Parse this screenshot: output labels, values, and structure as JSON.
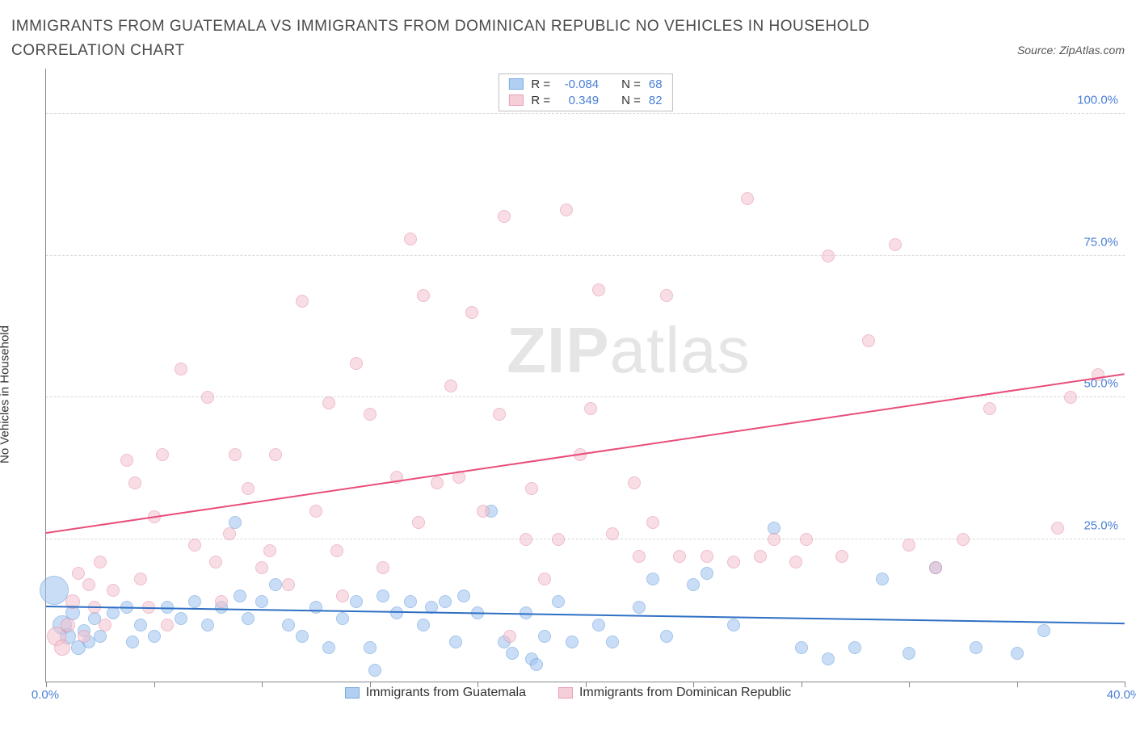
{
  "title": "IMMIGRANTS FROM GUATEMALA VS IMMIGRANTS FROM DOMINICAN REPUBLIC NO VEHICLES IN HOUSEHOLD CORRELATION CHART",
  "source_label": "Source: ZipAtlas.com",
  "y_axis_label": "No Vehicles in Household",
  "watermark": {
    "zip": "ZIP",
    "atlas": "atlas"
  },
  "chart": {
    "type": "scatter",
    "background_color": "#ffffff",
    "grid_color": "#d8d8d8",
    "axis_color": "#888888",
    "tick_label_color": "#4a7fd6",
    "xlim": [
      0,
      40
    ],
    "ylim": [
      0,
      108
    ],
    "x_ticks": [
      0,
      4,
      8,
      12,
      16,
      20,
      24,
      28,
      32,
      36,
      40
    ],
    "x_tick_labels": {
      "0": "0.0%",
      "40": "40.0%"
    },
    "y_ticks": [
      25,
      50,
      75,
      100
    ],
    "y_tick_labels": {
      "25": "25.0%",
      "50": "50.0%",
      "75": "75.0%",
      "100": "100.0%"
    },
    "series": [
      {
        "id": "guatemala",
        "label": "Immigrants from Guatemala",
        "fill_color": "#9ec4f0",
        "stroke_color": "#5a95d8",
        "fill_opacity": 0.55,
        "trend_color": "#2f6fc4",
        "r_label": "R =",
        "r_value": "-0.084",
        "n_label": "N =",
        "n_value": "68",
        "trend": {
          "x1": 0,
          "y1": 13,
          "x2": 40,
          "y2": 10
        },
        "points": [
          {
            "x": 0.3,
            "y": 16,
            "r": 18
          },
          {
            "x": 0.6,
            "y": 10,
            "r": 12
          },
          {
            "x": 0.8,
            "y": 8,
            "r": 10
          },
          {
            "x": 1.0,
            "y": 12,
            "r": 9
          },
          {
            "x": 1.2,
            "y": 6,
            "r": 9
          },
          {
            "x": 1.4,
            "y": 9,
            "r": 8
          },
          {
            "x": 1.6,
            "y": 7,
            "r": 8
          },
          {
            "x": 1.8,
            "y": 11,
            "r": 8
          },
          {
            "x": 2.0,
            "y": 8,
            "r": 8
          },
          {
            "x": 2.5,
            "y": 12,
            "r": 8
          },
          {
            "x": 3.0,
            "y": 13,
            "r": 8
          },
          {
            "x": 3.2,
            "y": 7,
            "r": 8
          },
          {
            "x": 3.5,
            "y": 10,
            "r": 8
          },
          {
            "x": 4.0,
            "y": 8,
            "r": 8
          },
          {
            "x": 4.5,
            "y": 13,
            "r": 8
          },
          {
            "x": 5.0,
            "y": 11,
            "r": 8
          },
          {
            "x": 5.5,
            "y": 14,
            "r": 8
          },
          {
            "x": 6.0,
            "y": 10,
            "r": 8
          },
          {
            "x": 6.5,
            "y": 13,
            "r": 8
          },
          {
            "x": 7.0,
            "y": 28,
            "r": 8
          },
          {
            "x": 7.2,
            "y": 15,
            "r": 8
          },
          {
            "x": 7.5,
            "y": 11,
            "r": 8
          },
          {
            "x": 8.0,
            "y": 14,
            "r": 8
          },
          {
            "x": 8.5,
            "y": 17,
            "r": 8
          },
          {
            "x": 9.0,
            "y": 10,
            "r": 8
          },
          {
            "x": 9.5,
            "y": 8,
            "r": 8
          },
          {
            "x": 10.0,
            "y": 13,
            "r": 8
          },
          {
            "x": 10.5,
            "y": 6,
            "r": 8
          },
          {
            "x": 11.0,
            "y": 11,
            "r": 8
          },
          {
            "x": 11.5,
            "y": 14,
            "r": 8
          },
          {
            "x": 12.0,
            "y": 6,
            "r": 8
          },
          {
            "x": 12.2,
            "y": 2,
            "r": 8
          },
          {
            "x": 12.5,
            "y": 15,
            "r": 8
          },
          {
            "x": 13.0,
            "y": 12,
            "r": 8
          },
          {
            "x": 13.5,
            "y": 14,
            "r": 8
          },
          {
            "x": 14.0,
            "y": 10,
            "r": 8
          },
          {
            "x": 14.3,
            "y": 13,
            "r": 8
          },
          {
            "x": 14.8,
            "y": 14,
            "r": 8
          },
          {
            "x": 15.2,
            "y": 7,
            "r": 8
          },
          {
            "x": 15.5,
            "y": 15,
            "r": 8
          },
          {
            "x": 16.0,
            "y": 12,
            "r": 8
          },
          {
            "x": 16.5,
            "y": 30,
            "r": 8
          },
          {
            "x": 17.0,
            "y": 7,
            "r": 8
          },
          {
            "x": 17.3,
            "y": 5,
            "r": 8
          },
          {
            "x": 17.8,
            "y": 12,
            "r": 8
          },
          {
            "x": 18.0,
            "y": 4,
            "r": 8
          },
          {
            "x": 18.2,
            "y": 3,
            "r": 8
          },
          {
            "x": 18.5,
            "y": 8,
            "r": 8
          },
          {
            "x": 19.0,
            "y": 14,
            "r": 8
          },
          {
            "x": 19.5,
            "y": 7,
            "r": 8
          },
          {
            "x": 20.5,
            "y": 10,
            "r": 8
          },
          {
            "x": 21.0,
            "y": 7,
            "r": 8
          },
          {
            "x": 22.0,
            "y": 13,
            "r": 8
          },
          {
            "x": 22.5,
            "y": 18,
            "r": 8
          },
          {
            "x": 23.0,
            "y": 8,
            "r": 8
          },
          {
            "x": 24.0,
            "y": 17,
            "r": 8
          },
          {
            "x": 24.5,
            "y": 19,
            "r": 8
          },
          {
            "x": 25.5,
            "y": 10,
            "r": 8
          },
          {
            "x": 27.0,
            "y": 27,
            "r": 8
          },
          {
            "x": 28.0,
            "y": 6,
            "r": 8
          },
          {
            "x": 29.0,
            "y": 4,
            "r": 8
          },
          {
            "x": 30.0,
            "y": 6,
            "r": 8
          },
          {
            "x": 31.0,
            "y": 18,
            "r": 8
          },
          {
            "x": 32.0,
            "y": 5,
            "r": 8
          },
          {
            "x": 33.0,
            "y": 20,
            "r": 8
          },
          {
            "x": 34.5,
            "y": 6,
            "r": 8
          },
          {
            "x": 36.0,
            "y": 5,
            "r": 8
          },
          {
            "x": 37.0,
            "y": 9,
            "r": 8
          }
        ]
      },
      {
        "id": "dominican",
        "label": "Immigrants from Dominican Republic",
        "fill_color": "#f4c2cf",
        "stroke_color": "#e388a3",
        "fill_opacity": 0.55,
        "trend_color": "#e94d7a",
        "r_label": "R =",
        "r_value": "0.349",
        "n_label": "N =",
        "n_value": "82",
        "trend": {
          "x1": 0,
          "y1": 26,
          "x2": 40,
          "y2": 54
        },
        "points": [
          {
            "x": 0.4,
            "y": 8,
            "r": 12
          },
          {
            "x": 0.6,
            "y": 6,
            "r": 10
          },
          {
            "x": 0.8,
            "y": 10,
            "r": 9
          },
          {
            "x": 1.0,
            "y": 14,
            "r": 9
          },
          {
            "x": 1.2,
            "y": 19,
            "r": 8
          },
          {
            "x": 1.4,
            "y": 8,
            "r": 8
          },
          {
            "x": 1.6,
            "y": 17,
            "r": 8
          },
          {
            "x": 1.8,
            "y": 13,
            "r": 8
          },
          {
            "x": 2.0,
            "y": 21,
            "r": 8
          },
          {
            "x": 2.2,
            "y": 10,
            "r": 8
          },
          {
            "x": 2.5,
            "y": 16,
            "r": 8
          },
          {
            "x": 3.0,
            "y": 39,
            "r": 8
          },
          {
            "x": 3.3,
            "y": 35,
            "r": 8
          },
          {
            "x": 3.5,
            "y": 18,
            "r": 8
          },
          {
            "x": 3.8,
            "y": 13,
            "r": 8
          },
          {
            "x": 4.0,
            "y": 29,
            "r": 8
          },
          {
            "x": 4.3,
            "y": 40,
            "r": 8
          },
          {
            "x": 4.5,
            "y": 10,
            "r": 8
          },
          {
            "x": 5.0,
            "y": 55,
            "r": 8
          },
          {
            "x": 5.5,
            "y": 24,
            "r": 8
          },
          {
            "x": 6.0,
            "y": 50,
            "r": 8
          },
          {
            "x": 6.3,
            "y": 21,
            "r": 8
          },
          {
            "x": 6.5,
            "y": 14,
            "r": 8
          },
          {
            "x": 6.8,
            "y": 26,
            "r": 8
          },
          {
            "x": 7.0,
            "y": 40,
            "r": 8
          },
          {
            "x": 7.5,
            "y": 34,
            "r": 8
          },
          {
            "x": 8.0,
            "y": 20,
            "r": 8
          },
          {
            "x": 8.3,
            "y": 23,
            "r": 8
          },
          {
            "x": 8.5,
            "y": 40,
            "r": 8
          },
          {
            "x": 9.0,
            "y": 17,
            "r": 8
          },
          {
            "x": 9.5,
            "y": 67,
            "r": 8
          },
          {
            "x": 10.0,
            "y": 30,
            "r": 8
          },
          {
            "x": 10.5,
            "y": 49,
            "r": 8
          },
          {
            "x": 10.8,
            "y": 23,
            "r": 8
          },
          {
            "x": 11.0,
            "y": 15,
            "r": 8
          },
          {
            "x": 11.5,
            "y": 56,
            "r": 8
          },
          {
            "x": 12.0,
            "y": 47,
            "r": 8
          },
          {
            "x": 12.5,
            "y": 20,
            "r": 8
          },
          {
            "x": 13.0,
            "y": 36,
            "r": 8
          },
          {
            "x": 13.5,
            "y": 78,
            "r": 8
          },
          {
            "x": 13.8,
            "y": 28,
            "r": 8
          },
          {
            "x": 14.0,
            "y": 68,
            "r": 8
          },
          {
            "x": 14.5,
            "y": 35,
            "r": 8
          },
          {
            "x": 15.0,
            "y": 52,
            "r": 8
          },
          {
            "x": 15.3,
            "y": 36,
            "r": 8
          },
          {
            "x": 15.8,
            "y": 65,
            "r": 8
          },
          {
            "x": 16.2,
            "y": 30,
            "r": 8
          },
          {
            "x": 16.8,
            "y": 47,
            "r": 8
          },
          {
            "x": 17.0,
            "y": 82,
            "r": 8
          },
          {
            "x": 17.2,
            "y": 8,
            "r": 8
          },
          {
            "x": 17.8,
            "y": 25,
            "r": 8
          },
          {
            "x": 18.0,
            "y": 34,
            "r": 8
          },
          {
            "x": 18.5,
            "y": 18,
            "r": 8
          },
          {
            "x": 19.0,
            "y": 25,
            "r": 8
          },
          {
            "x": 19.3,
            "y": 83,
            "r": 8
          },
          {
            "x": 19.8,
            "y": 40,
            "r": 8
          },
          {
            "x": 20.2,
            "y": 48,
            "r": 8
          },
          {
            "x": 20.5,
            "y": 69,
            "r": 8
          },
          {
            "x": 21.0,
            "y": 26,
            "r": 8
          },
          {
            "x": 21.8,
            "y": 35,
            "r": 8
          },
          {
            "x": 22.0,
            "y": 22,
            "r": 8
          },
          {
            "x": 22.5,
            "y": 28,
            "r": 8
          },
          {
            "x": 23.0,
            "y": 68,
            "r": 8
          },
          {
            "x": 23.5,
            "y": 22,
            "r": 8
          },
          {
            "x": 24.5,
            "y": 22,
            "r": 8
          },
          {
            "x": 25.5,
            "y": 21,
            "r": 8
          },
          {
            "x": 26.0,
            "y": 85,
            "r": 8
          },
          {
            "x": 26.5,
            "y": 22,
            "r": 8
          },
          {
            "x": 27.0,
            "y": 25,
            "r": 8
          },
          {
            "x": 27.8,
            "y": 21,
            "r": 8
          },
          {
            "x": 28.2,
            "y": 25,
            "r": 8
          },
          {
            "x": 29.0,
            "y": 75,
            "r": 8
          },
          {
            "x": 29.5,
            "y": 22,
            "r": 8
          },
          {
            "x": 30.5,
            "y": 60,
            "r": 8
          },
          {
            "x": 31.5,
            "y": 77,
            "r": 8
          },
          {
            "x": 32.0,
            "y": 24,
            "r": 8
          },
          {
            "x": 33.0,
            "y": 20,
            "r": 8
          },
          {
            "x": 34.0,
            "y": 25,
            "r": 8
          },
          {
            "x": 35.0,
            "y": 48,
            "r": 8
          },
          {
            "x": 37.5,
            "y": 27,
            "r": 8
          },
          {
            "x": 38.0,
            "y": 50,
            "r": 8
          },
          {
            "x": 39.0,
            "y": 54,
            "r": 8
          }
        ]
      }
    ]
  }
}
